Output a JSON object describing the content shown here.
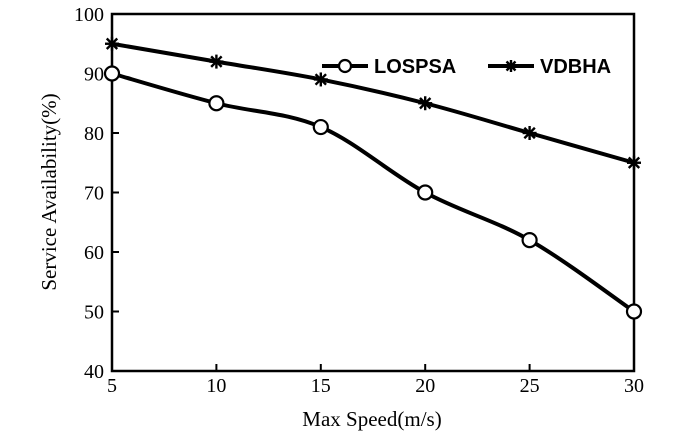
{
  "chart_data": {
    "type": "line",
    "xlabel": "Max Speed(m/s)",
    "ylabel": "Service Availability(%)",
    "x": [
      5,
      10,
      15,
      20,
      25,
      30
    ],
    "xlim": [
      5,
      30
    ],
    "ylim": [
      40,
      100
    ],
    "xticks": [
      "5",
      "10",
      "15",
      "20",
      "25",
      "30"
    ],
    "yticks": [
      "40",
      "50",
      "60",
      "70",
      "80",
      "90",
      "100"
    ],
    "grid": false,
    "legend_position": "top-right",
    "series": [
      {
        "name": "LOSPSA",
        "marker": "circle",
        "values": [
          90,
          85,
          81,
          70,
          62,
          50
        ]
      },
      {
        "name": "VDBHA",
        "marker": "star",
        "values": [
          95,
          92,
          89,
          85,
          80,
          75
        ]
      }
    ]
  }
}
